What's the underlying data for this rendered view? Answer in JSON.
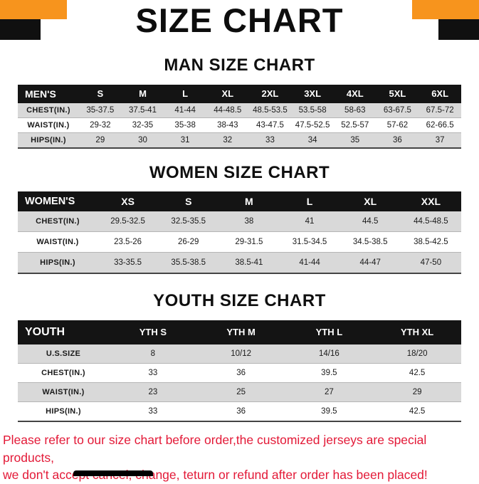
{
  "title": "SIZE CHART",
  "sections": [
    {
      "heading": "MAN SIZE CHART",
      "table": {
        "header": [
          "MEN'S",
          "S",
          "M",
          "L",
          "XL",
          "2XL",
          "3XL",
          "4XL",
          "5XL",
          "6XL"
        ],
        "rows": [
          {
            "label": "CHEST(IN.)",
            "values": [
              "35-37.5",
              "37.5-41",
              "41-44",
              "44-48.5",
              "48.5-53.5",
              "53.5-58",
              "58-63",
              "63-67.5",
              "67.5-72"
            ]
          },
          {
            "label": "WAIST(IN.)",
            "values": [
              "29-32",
              "32-35",
              "35-38",
              "38-43",
              "43-47.5",
              "47.5-52.5",
              "52.5-57",
              "57-62",
              "62-66.5"
            ]
          },
          {
            "label": "HIPS(IN.)",
            "values": [
              "29",
              "30",
              "31",
              "32",
              "33",
              "34",
              "35",
              "36",
              "37"
            ]
          }
        ]
      }
    },
    {
      "heading": "WOMEN SIZE CHART",
      "table": {
        "header": [
          "WOMEN'S",
          "XS",
          "S",
          "M",
          "L",
          "XL",
          "XXL"
        ],
        "rows": [
          {
            "label": "CHEST(IN.)",
            "values": [
              "29.5-32.5",
              "32.5-35.5",
              "38",
              "41",
              "44.5",
              "44.5-48.5"
            ]
          },
          {
            "label": "WAIST(IN.)",
            "values": [
              "23.5-26",
              "26-29",
              "29-31.5",
              "31.5-34.5",
              "34.5-38.5",
              "38.5-42.5"
            ]
          },
          {
            "label": "HIPS(IN.)",
            "values": [
              "33-35.5",
              "35.5-38.5",
              "38.5-41",
              "41-44",
              "44-47",
              "47-50"
            ]
          }
        ]
      }
    },
    {
      "heading": "YOUTH SIZE CHART",
      "table": {
        "header": [
          "YOUTH",
          "YTH S",
          "YTH M",
          "YTH L",
          "YTH XL"
        ],
        "rows": [
          {
            "label": "U.S.SIZE",
            "values": [
              "8",
              "10/12",
              "14/16",
              "18/20"
            ]
          },
          {
            "label": "CHEST(IN.)",
            "values": [
              "33",
              "36",
              "39.5",
              "42.5"
            ]
          },
          {
            "label": "WAIST(IN.)",
            "values": [
              "23",
              "25",
              "27",
              "29"
            ]
          },
          {
            "label": "HIPS(IN.)",
            "values": [
              "33",
              "36",
              "39.5",
              "42.5"
            ]
          }
        ]
      }
    }
  ],
  "footer": {
    "line1": "Please refer to our size chart before order,the customized jerseys are special products,",
    "line2": "we don't accept cancel, change, teturn or refund after order has been placed!"
  },
  "colors": {
    "accent_orange": "#f7941d",
    "header_black": "#141414",
    "row_gray": "#d9d9d9",
    "footer_red": "#e31937"
  }
}
